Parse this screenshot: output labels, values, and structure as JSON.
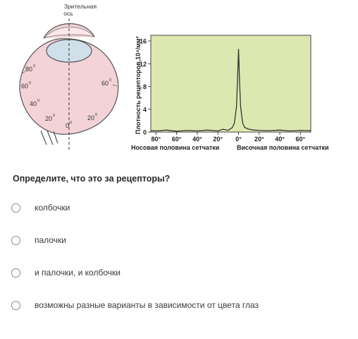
{
  "figure": {
    "eye": {
      "axis_label_line1": "Зрительная",
      "axis_label_line2": "ось",
      "angles": {
        "a80": "80",
        "a60_left": "60",
        "a40": "40",
        "a20_left": "20",
        "a0": "0",
        "a20_right": "20",
        "a60_right": "60"
      },
      "degree_mark": "0"
    },
    "colors": {
      "retina_fill": "#f4d3d8",
      "lens_fill": "#cfe0ea",
      "outline": "#555555",
      "chart_bg": "#dde8b0",
      "curve": "#333333"
    }
  },
  "chart_data": {
    "type": "line",
    "ylabel": "Плотность рецепторов,10⁴/мм²",
    "y_ticks": [
      "0",
      "4",
      "8",
      "12",
      "16"
    ],
    "ylim": [
      0,
      17
    ],
    "x_ticks": [
      "80°",
      "60°",
      "40°",
      "20°",
      "0°",
      "20°",
      "40°",
      "60°"
    ],
    "xlim": [
      -85,
      70
    ],
    "nasal_label": "Носовая половина сетчатки",
    "temporal_label": "Височная половина сетчатки",
    "series": [
      {
        "x": [
          -85,
          -80,
          -70,
          -60,
          -50,
          -40,
          -30,
          -20,
          -15,
          -10,
          -6,
          -4,
          -2,
          -1,
          0,
          1,
          2,
          4,
          6,
          10,
          15,
          20,
          30,
          40,
          50,
          60,
          70
        ],
        "y": [
          0.25,
          0.2,
          0.35,
          0.15,
          0.3,
          0.2,
          0.35,
          0.2,
          0.5,
          0.3,
          0.8,
          1.6,
          4.5,
          9,
          14.6,
          9,
          4.5,
          1.6,
          0.8,
          0.5,
          0.35,
          0.3,
          0.25,
          0.35,
          0.2,
          0.3,
          0.25
        ]
      }
    ]
  },
  "question": "Определите, что это за рецепторы?",
  "options": [
    "колбочки",
    "палочки",
    "и палочки, и колбочки",
    "возможны разные варианты в зависимости от цвета глаз"
  ]
}
